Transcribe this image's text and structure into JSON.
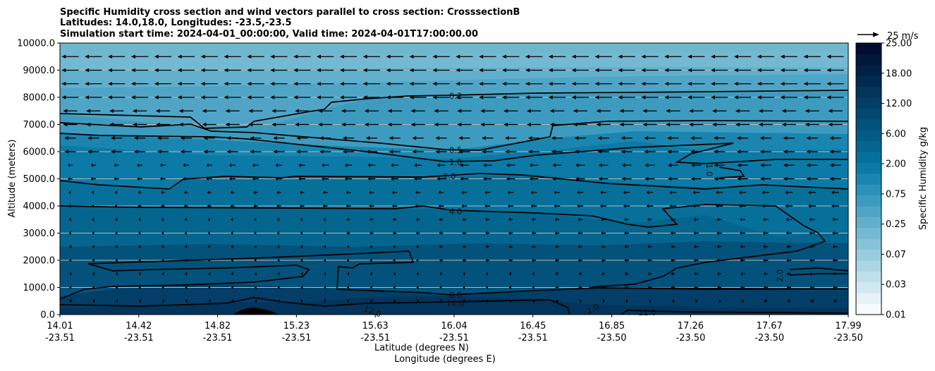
{
  "chart_data": {
    "type": "contour",
    "title_lines": [
      "Specific Humidity cross section and wind vectors parallel to cross section: CrosssectionB",
      "Latitudes: 14.0,18.0, Longitudes: -23.5,-23.5",
      "Simulation start time: 2024-04-01_00:00:00, Valid time: 2024-04-01T17:00:00.00"
    ],
    "xlabel_lat": "Latitude (degrees N)",
    "xlabel_lon": "Longitude (degrees E)",
    "ylabel": "Altitude (meters)",
    "ylim": [
      0,
      10000
    ],
    "y_ticks": [
      "0.0",
      "1000.0",
      "2000.0",
      "3000.0",
      "4000.0",
      "5000.0",
      "6000.0",
      "7000.0",
      "8000.0",
      "9000.0",
      "10000.0"
    ],
    "x_ticks": [
      {
        "lat": "14.01",
        "lon": "-23.51"
      },
      {
        "lat": "14.42",
        "lon": "-23.51"
      },
      {
        "lat": "14.82",
        "lon": "-23.51"
      },
      {
        "lat": "15.23",
        "lon": "-23.51"
      },
      {
        "lat": "15.63",
        "lon": "-23.51"
      },
      {
        "lat": "16.04",
        "lon": "-23.51"
      },
      {
        "lat": "16.45",
        "lon": "-23.51"
      },
      {
        "lat": "16.85",
        "lon": "-23.50"
      },
      {
        "lat": "17.26",
        "lon": "-23.50"
      },
      {
        "lat": "17.67",
        "lon": "-23.50"
      },
      {
        "lat": "17.99",
        "lon": "-23.50"
      }
    ],
    "colorbar": {
      "label": "Specific Humidity g/kg",
      "tick_labels": [
        "0.01",
        "0.03",
        "0.07",
        "0.25",
        "0.75",
        "2.00",
        "6.00",
        "12.00",
        "18.00",
        "25.00"
      ],
      "level_colors": [
        "#f7fbfd",
        "#e6f2f6",
        "#d2e8f0",
        "#bfe0ea",
        "#acd6e4",
        "#98cddf",
        "#86c3d9",
        "#74b9d2",
        "#62afcc",
        "#50a5c6",
        "#3d9bbf",
        "#2b91b8",
        "#1a86b0",
        "#0b7aa6",
        "#06709b",
        "#04668f",
        "#035c85",
        "#03527b",
        "#024871",
        "#023e67",
        "#02345c",
        "#012a52",
        "#012047",
        "#01173c",
        "#010e32"
      ]
    },
    "quiver_key_label": "25 m/s",
    "contour_labels": [
      "0.2",
      "0.5",
      "1.0",
      "2.0",
      "4.0",
      "8.0",
      "12.0",
      "12.0",
      "12.0",
      "2.0",
      "1.0",
      "2.0"
    ],
    "contour_levels_gkg": [
      0.2,
      0.5,
      1.0,
      2.0,
      4.0,
      8.0,
      12.0
    ],
    "vertical_gridlines": false,
    "horizontal_gridlines": true,
    "wind": "mostly easterly (pointing west); strongest aloft (~15-20 m/s), weak near surface"
  }
}
